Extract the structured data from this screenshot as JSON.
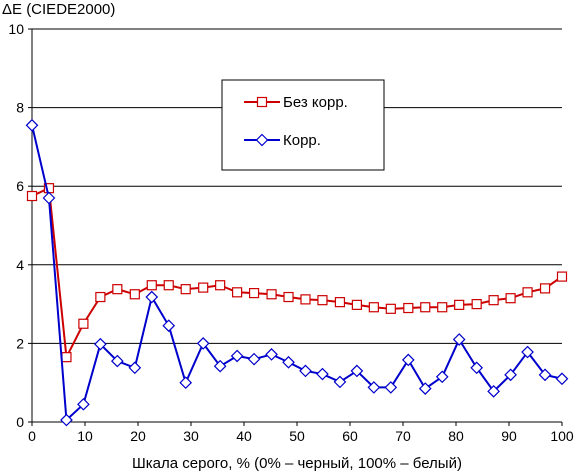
{
  "chart_data": {
    "type": "line",
    "title": "",
    "ylabel": "ΔE (CIEDE2000)",
    "xlabel": "Шкала серого, % (0% – черный, 100% – белый)",
    "xlim": [
      0,
      100
    ],
    "ylim": [
      0,
      10
    ],
    "xticks": [
      0,
      10,
      20,
      30,
      40,
      50,
      60,
      70,
      80,
      90,
      100
    ],
    "yticks": [
      0,
      2,
      4,
      6,
      8,
      10
    ],
    "grid": "horizontal",
    "legend_position": "upper-center",
    "series": [
      {
        "name": "Без корр.",
        "color": "#cc0000",
        "marker": "square",
        "x": [
          0,
          3.2,
          6.5,
          9.7,
          12.9,
          16.1,
          19.4,
          22.6,
          25.8,
          29.0,
          32.3,
          35.5,
          38.7,
          41.9,
          45.2,
          48.4,
          51.6,
          54.8,
          58.1,
          61.3,
          64.5,
          67.7,
          71.0,
          74.2,
          77.4,
          80.6,
          83.9,
          87.1,
          90.3,
          93.5,
          96.8,
          100
        ],
        "y": [
          5.75,
          5.95,
          1.65,
          2.5,
          3.18,
          3.38,
          3.25,
          3.48,
          3.48,
          3.38,
          3.42,
          3.48,
          3.3,
          3.28,
          3.25,
          3.18,
          3.12,
          3.1,
          3.05,
          2.98,
          2.92,
          2.88,
          2.9,
          2.92,
          2.92,
          2.98,
          3.0,
          3.1,
          3.15,
          3.3,
          3.4,
          3.7
        ]
      },
      {
        "name": "Корр.",
        "color": "#0000cc",
        "marker": "diamond",
        "x": [
          0,
          3.2,
          6.5,
          9.7,
          12.9,
          16.1,
          19.4,
          22.6,
          25.8,
          29.0,
          32.3,
          35.5,
          38.7,
          41.9,
          45.2,
          48.4,
          51.6,
          54.8,
          58.1,
          61.3,
          64.5,
          67.7,
          71.0,
          74.2,
          77.4,
          80.6,
          83.9,
          87.1,
          90.3,
          93.5,
          96.8,
          100
        ],
        "y": [
          7.55,
          5.7,
          0.05,
          0.45,
          1.98,
          1.55,
          1.38,
          3.18,
          2.45,
          1.0,
          2.0,
          1.42,
          1.68,
          1.6,
          1.72,
          1.52,
          1.3,
          1.22,
          1.02,
          1.3,
          0.88,
          0.88,
          1.58,
          0.85,
          1.15,
          2.1,
          1.38,
          0.78,
          1.2,
          1.78,
          1.2,
          1.1
        ]
      }
    ]
  }
}
